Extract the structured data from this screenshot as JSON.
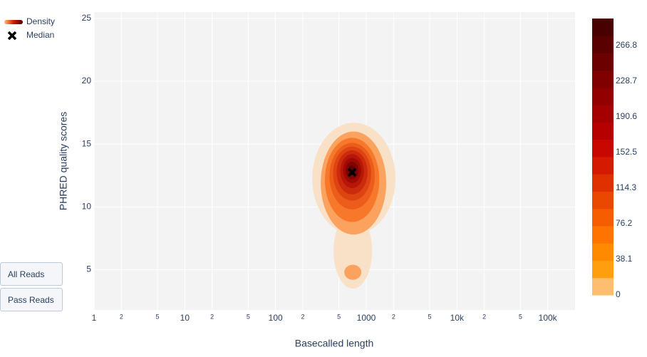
{
  "chart_data": {
    "type": "density_contour",
    "x_label": "Basecalled length",
    "y_label": "PHRED quality scores",
    "xscale": "log",
    "grid": true,
    "xlim": [
      1,
      200000
    ],
    "ylim": [
      1.8,
      25.5
    ],
    "xticks": [
      1,
      2,
      5,
      10,
      {
        "value": 20,
        "label": "2"
      },
      {
        "value": 50,
        "label": "5"
      },
      100,
      {
        "value": 200,
        "label": "2"
      },
      {
        "value": 500,
        "label": "5"
      },
      1000,
      {
        "value": 2000,
        "label": "2"
      },
      {
        "value": 5000,
        "label": "5"
      },
      {
        "value": 10000,
        "label": "10k"
      },
      {
        "value": 20000,
        "label": "2"
      },
      {
        "value": 50000,
        "label": "5"
      },
      {
        "value": 100000,
        "label": "100k"
      }
    ],
    "yticks": [
      5,
      10,
      15,
      20,
      25
    ],
    "density": {
      "name": "Density",
      "levels": [
        {
          "color": "#f9e1c8",
          "parts": [
            {
              "x": [
                254,
                2100
              ],
              "y": [
                7.8,
                16.7
              ]
            },
            {
              "x": [
                436,
                1160
              ],
              "y": [
                3.5,
                9.5
              ]
            }
          ]
        },
        {
          "color": "#fba35e",
          "parts": [
            {
              "x": [
                315,
                1660
              ],
              "y": [
                7.8,
                16.0
              ]
            },
            {
              "x": [
                572,
                883
              ],
              "y": [
                4.2,
                5.4
              ]
            }
          ]
        },
        {
          "color": "#f7782a",
          "parts": [
            {
              "x": [
                350,
                1393
              ],
              "y": [
                8.8,
                15.5
              ]
            }
          ]
        },
        {
          "color": "#ec5c1a",
          "parts": [
            {
              "x": [
                393,
                1242
              ],
              "y": [
                9.8,
                15.1
              ]
            }
          ]
        },
        {
          "color": "#de4412",
          "parts": [
            {
              "x": [
                431,
                1132
              ],
              "y": [
                10.5,
                14.8
              ]
            }
          ]
        },
        {
          "color": "#cc2a0c",
          "parts": [
            {
              "x": [
                472,
                1033
              ],
              "y": [
                11.0,
                14.5
              ]
            }
          ]
        },
        {
          "color": "#b81608",
          "parts": [
            {
              "x": [
                518,
                942
              ],
              "y": [
                11.5,
                14.2
              ]
            }
          ]
        },
        {
          "color": "#9e0a04",
          "parts": [
            {
              "x": [
                555,
                879
              ],
              "y": [
                11.9,
                13.9
              ]
            }
          ]
        },
        {
          "color": "#820402",
          "parts": [
            {
              "x": [
                594,
                820
              ],
              "y": [
                12.2,
                13.6
              ]
            }
          ]
        },
        {
          "color": "#5e0000",
          "parts": [
            {
              "x": [
                637,
                766
              ],
              "y": [
                12.5,
                13.3
              ]
            }
          ]
        }
      ]
    },
    "median": {
      "name": "Median",
      "x": 698,
      "y": 12.75,
      "color": "#000000"
    },
    "colorbar": {
      "range": [
        0,
        295.7
      ],
      "ticks": [
        0,
        38.1,
        76.2,
        114.3,
        152.5,
        190.6,
        228.7,
        266.8
      ],
      "colors": [
        "#fdbf6f",
        "#ff9f10",
        "#ff8a00",
        "#ff7300",
        "#f55d00",
        "#ea4800",
        "#df3100",
        "#d41a00",
        "#c80800",
        "#b60000",
        "#a40000",
        "#920000",
        "#800000",
        "#6c0000",
        "#5a0000",
        "#480000"
      ]
    },
    "buttons": [
      "All Reads",
      "Pass Reads"
    ]
  }
}
